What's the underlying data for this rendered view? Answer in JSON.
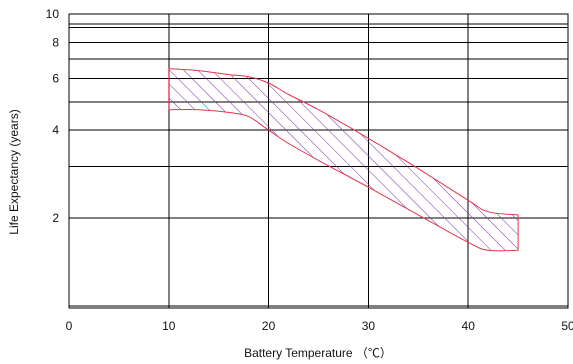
{
  "chart_data": {
    "type": "area",
    "xlabel": "Battery Temperature （℃）",
    "ylabel": "Life Expectancy (years)",
    "xlim": [
      0,
      50
    ],
    "x_ticks": [
      "0",
      "10",
      "20",
      "30",
      "40",
      "50"
    ],
    "y_scale": "log",
    "y_ticks": [
      "2",
      "4",
      "6",
      "8",
      "10"
    ],
    "grid": true,
    "series": [
      {
        "role": "upper-bound",
        "x": [
          10,
          13,
          16,
          18,
          20,
          22,
          25,
          30,
          35,
          40,
          42,
          45
        ],
        "y": [
          6.5,
          6.4,
          6.2,
          6.1,
          5.8,
          5.3,
          4.7,
          3.75,
          2.95,
          2.3,
          2.1,
          2.05
        ]
      },
      {
        "role": "lower-bound",
        "x": [
          10,
          13,
          16,
          18,
          20,
          22,
          25,
          30,
          35,
          40,
          42,
          45
        ],
        "y": [
          4.7,
          4.7,
          4.6,
          4.45,
          4.0,
          3.6,
          3.15,
          2.55,
          2.05,
          1.65,
          1.55,
          1.55
        ]
      }
    ],
    "colors": {
      "band_outline": "#e8344e",
      "hatch": "#7b2fa6",
      "grid": "#000000",
      "text": "#111111"
    }
  }
}
